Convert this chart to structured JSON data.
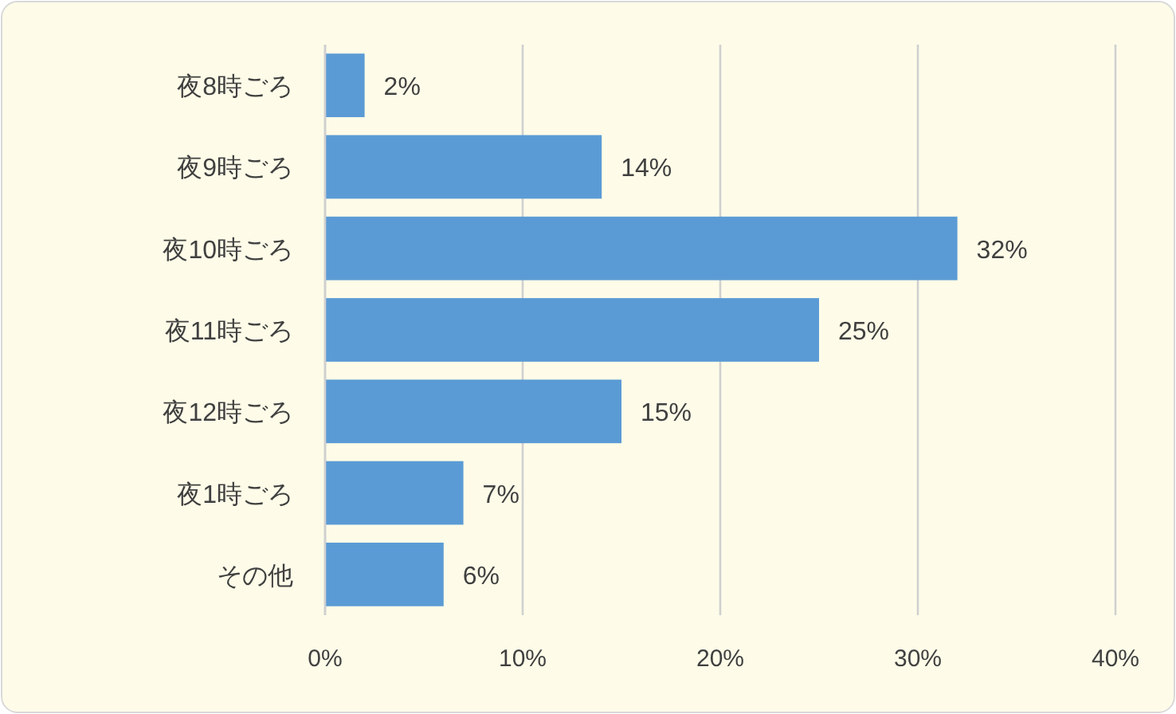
{
  "chart_data": {
    "type": "bar",
    "orientation": "horizontal",
    "categories": [
      "夜8時ごろ",
      "夜9時ごろ",
      "夜10時ごろ",
      "夜11時ごろ",
      "夜12時ごろ",
      "夜1時ごろ",
      "その他"
    ],
    "values": [
      2,
      14,
      32,
      25,
      15,
      7,
      6
    ],
    "value_labels": [
      "2%",
      "14%",
      "32%",
      "25%",
      "15%",
      "7%",
      "6%"
    ],
    "color": "#5b9bd5",
    "xlim": [
      0,
      40
    ],
    "xticks": [
      {
        "value": 0,
        "label": "0%"
      },
      {
        "value": 10,
        "label": "10%"
      },
      {
        "value": 20,
        "label": "20%"
      },
      {
        "value": 30,
        "label": "30%"
      },
      {
        "value": 40,
        "label": "40%"
      }
    ],
    "grid": "x"
  }
}
